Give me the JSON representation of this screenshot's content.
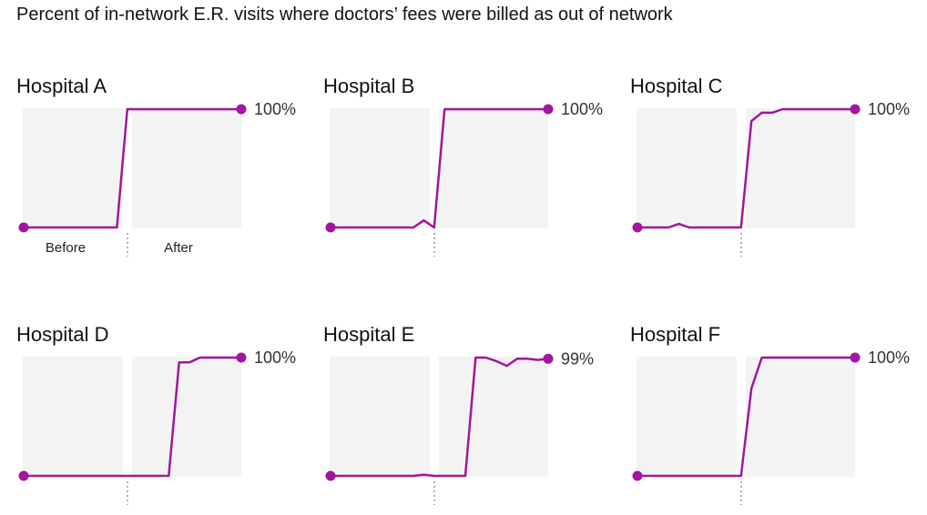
{
  "title": "Percent of in-network E.R. visits where doctors’ fees were billed as out of network",
  "colors": {
    "line": "#a3159f",
    "shade": "#f3f3f3",
    "divider": "#999999"
  },
  "chart_data": [
    {
      "type": "line",
      "title": "Hospital A",
      "phase_labels": [
        "Before",
        "After"
      ],
      "end_label": "100%",
      "ylim": [
        0,
        100
      ],
      "x": [
        0,
        1,
        2,
        3,
        4,
        5,
        6,
        7,
        8,
        9,
        10,
        11,
        12,
        13,
        14,
        15,
        16,
        17,
        18,
        19,
        20,
        21
      ],
      "values": [
        0,
        0,
        0,
        0,
        0,
        0,
        0,
        0,
        0,
        0,
        100,
        100,
        100,
        100,
        100,
        100,
        100,
        100,
        100,
        100,
        100,
        100
      ]
    },
    {
      "type": "line",
      "title": "Hospital B",
      "phase_labels": [
        "",
        ""
      ],
      "end_label": "100%",
      "ylim": [
        0,
        100
      ],
      "x": [
        0,
        1,
        2,
        3,
        4,
        5,
        6,
        7,
        8,
        9,
        10,
        11,
        12,
        13,
        14,
        15,
        16,
        17,
        18,
        19,
        20,
        21
      ],
      "values": [
        0,
        0,
        0,
        0,
        0,
        0,
        0,
        0,
        0,
        6,
        0,
        100,
        100,
        100,
        100,
        100,
        100,
        100,
        100,
        100,
        100,
        100
      ]
    },
    {
      "type": "line",
      "title": "Hospital C",
      "phase_labels": [
        "",
        ""
      ],
      "end_label": "100%",
      "ylim": [
        0,
        100
      ],
      "x": [
        0,
        1,
        2,
        3,
        4,
        5,
        6,
        7,
        8,
        9,
        10,
        11,
        12,
        13,
        14,
        15,
        16,
        17,
        18,
        19,
        20,
        21
      ],
      "values": [
        0,
        0,
        0,
        0,
        3,
        0,
        0,
        0,
        0,
        0,
        0,
        90,
        97,
        97,
        100,
        100,
        100,
        100,
        100,
        100,
        100,
        100
      ]
    },
    {
      "type": "line",
      "title": "Hospital D",
      "phase_labels": [
        "",
        ""
      ],
      "end_label": "100%",
      "ylim": [
        0,
        100
      ],
      "x": [
        0,
        1,
        2,
        3,
        4,
        5,
        6,
        7,
        8,
        9,
        10,
        11,
        12,
        13,
        14,
        15,
        16,
        17,
        18,
        19,
        20,
        21
      ],
      "values": [
        0,
        0,
        0,
        0,
        0,
        0,
        0,
        0,
        0,
        0,
        0,
        0,
        0,
        0,
        0,
        96,
        96,
        100,
        100,
        100,
        100,
        100
      ]
    },
    {
      "type": "line",
      "title": "Hospital E",
      "phase_labels": [
        "",
        ""
      ],
      "end_label": "99%",
      "ylim": [
        0,
        100
      ],
      "x": [
        0,
        1,
        2,
        3,
        4,
        5,
        6,
        7,
        8,
        9,
        10,
        11,
        12,
        13,
        14,
        15,
        16,
        17,
        18,
        19,
        20,
        21
      ],
      "values": [
        0,
        0,
        0,
        0,
        0,
        0,
        0,
        0,
        0,
        1,
        0,
        0,
        0,
        0,
        100,
        100,
        97,
        93,
        99,
        99,
        98,
        99
      ]
    },
    {
      "type": "line",
      "title": "Hospital F",
      "phase_labels": [
        "",
        ""
      ],
      "end_label": "100%",
      "ylim": [
        0,
        100
      ],
      "x": [
        0,
        1,
        2,
        3,
        4,
        5,
        6,
        7,
        8,
        9,
        10,
        11,
        12,
        13,
        14,
        15,
        16,
        17,
        18,
        19,
        20,
        21
      ],
      "values": [
        0,
        0,
        0,
        0,
        0,
        0,
        0,
        0,
        0,
        0,
        0,
        74,
        100,
        100,
        100,
        100,
        100,
        100,
        100,
        100,
        100,
        100
      ]
    }
  ]
}
